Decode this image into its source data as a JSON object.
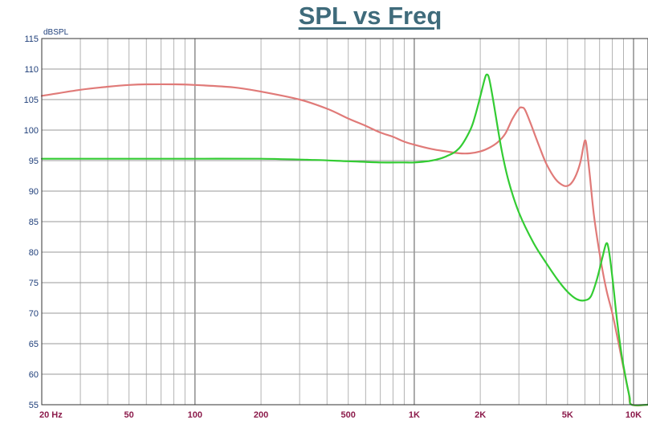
{
  "chart_data": {
    "type": "line",
    "title": "SPL vs Freq",
    "ylabel": "dBSPL",
    "xlabel": "",
    "x_scale": "log",
    "xlim": [
      20,
      10000
    ],
    "ylim": [
      55,
      115
    ],
    "grid": true,
    "yticks": [
      115,
      110,
      105,
      100,
      95,
      90,
      85,
      80,
      75,
      70,
      65,
      60,
      55
    ],
    "xticks": [
      {
        "value": 20,
        "label": "20 Hz"
      },
      {
        "value": 50,
        "label": "50"
      },
      {
        "value": 100,
        "label": "100"
      },
      {
        "value": 200,
        "label": "200"
      },
      {
        "value": 500,
        "label": "500"
      },
      {
        "value": 1000,
        "label": "1K"
      },
      {
        "value": 2000,
        "label": "2K"
      },
      {
        "value": 5000,
        "label": "5K"
      },
      {
        "value": 10000,
        "label": "10K"
      }
    ],
    "series": [
      {
        "color": "#e07a78",
        "points": [
          [
            20,
            105.6
          ],
          [
            30,
            106.6
          ],
          [
            40,
            107.1
          ],
          [
            50,
            107.4
          ],
          [
            60,
            107.5
          ],
          [
            80,
            107.5
          ],
          [
            100,
            107.4
          ],
          [
            150,
            107.0
          ],
          [
            200,
            106.3
          ],
          [
            300,
            105.0
          ],
          [
            400,
            103.5
          ],
          [
            500,
            101.9
          ],
          [
            600,
            100.7
          ],
          [
            700,
            99.6
          ],
          [
            800,
            98.9
          ],
          [
            900,
            98.1
          ],
          [
            1000,
            97.6
          ],
          [
            1200,
            96.9
          ],
          [
            1400,
            96.5
          ],
          [
            1600,
            96.2
          ],
          [
            1800,
            96.2
          ],
          [
            2000,
            96.5
          ],
          [
            2200,
            97.1
          ],
          [
            2400,
            98.0
          ],
          [
            2600,
            99.4
          ],
          [
            2800,
            101.8
          ],
          [
            3000,
            103.5
          ],
          [
            3100,
            103.7
          ],
          [
            3200,
            103.3
          ],
          [
            3400,
            101.0
          ],
          [
            3700,
            97.5
          ],
          [
            4000,
            94.5
          ],
          [
            4400,
            92.0
          ],
          [
            4800,
            90.9
          ],
          [
            5100,
            91.0
          ],
          [
            5400,
            92.2
          ],
          [
            5700,
            94.5
          ],
          [
            5900,
            97.2
          ],
          [
            6000,
            98.3
          ],
          [
            6100,
            97.5
          ],
          [
            6300,
            93.0
          ],
          [
            6600,
            86.0
          ],
          [
            7000,
            79.8
          ],
          [
            7500,
            74.0
          ],
          [
            8000,
            70.0
          ],
          [
            8500,
            65.5
          ],
          [
            9000,
            61.0
          ],
          [
            9500,
            57.0
          ],
          [
            9800,
            55.0
          ]
        ]
      },
      {
        "color": "#33cc33",
        "points": [
          [
            20,
            95.3
          ],
          [
            50,
            95.3
          ],
          [
            100,
            95.3
          ],
          [
            200,
            95.3
          ],
          [
            350,
            95.1
          ],
          [
            500,
            94.9
          ],
          [
            700,
            94.7
          ],
          [
            900,
            94.7
          ],
          [
            1000,
            94.7
          ],
          [
            1200,
            95.0
          ],
          [
            1400,
            95.7
          ],
          [
            1600,
            97.0
          ],
          [
            1800,
            100.0
          ],
          [
            1900,
            102.5
          ],
          [
            2000,
            105.5
          ],
          [
            2100,
            108.5
          ],
          [
            2150,
            109.1
          ],
          [
            2200,
            108.3
          ],
          [
            2300,
            104.5
          ],
          [
            2500,
            96.8
          ],
          [
            2700,
            91.5
          ],
          [
            3000,
            86.5
          ],
          [
            3500,
            81.5
          ],
          [
            4000,
            78.2
          ],
          [
            4500,
            75.5
          ],
          [
            5000,
            73.5
          ],
          [
            5500,
            72.3
          ],
          [
            6000,
            72.1
          ],
          [
            6400,
            72.8
          ],
          [
            6800,
            75.5
          ],
          [
            7200,
            79.0
          ],
          [
            7500,
            81.4
          ],
          [
            7700,
            80.5
          ],
          [
            8000,
            76.0
          ],
          [
            8400,
            69.0
          ],
          [
            8800,
            63.5
          ],
          [
            9200,
            59.5
          ],
          [
            9600,
            56.2
          ],
          [
            9800,
            55.0
          ]
        ]
      }
    ]
  }
}
